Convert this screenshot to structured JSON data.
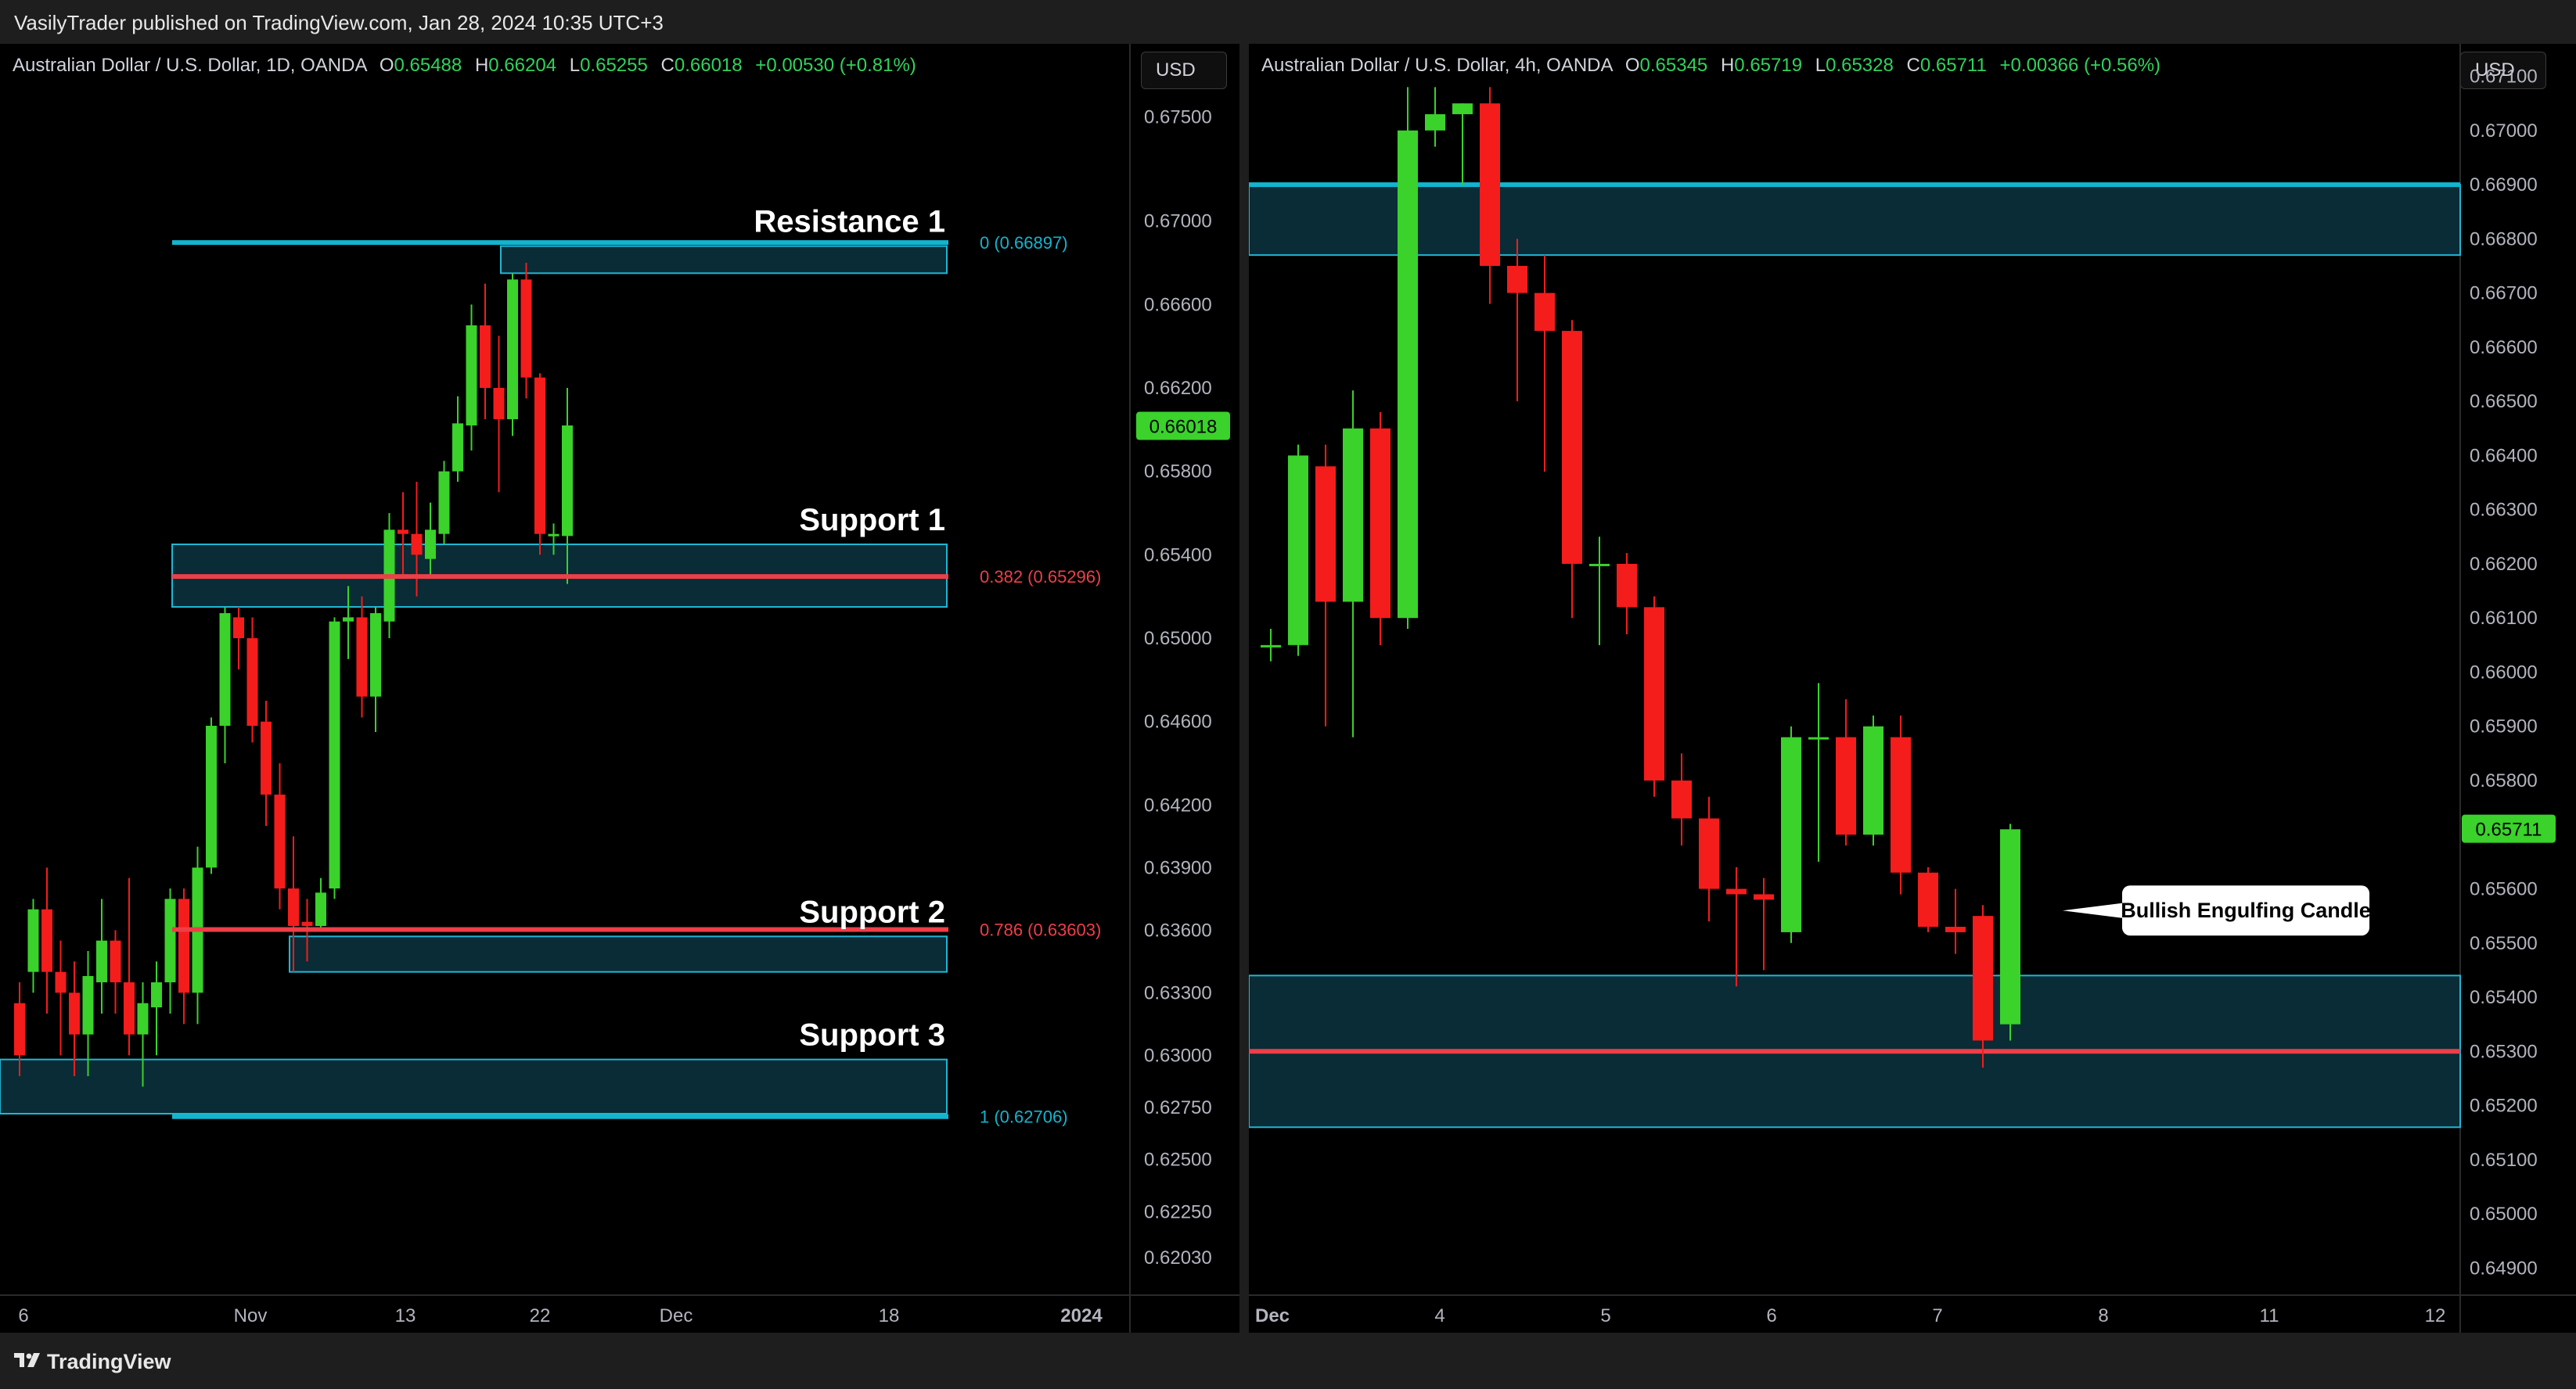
{
  "header": {
    "published": "VasilyTrader published on TradingView.com, Jan 28, 2024 10:35 UTC+3"
  },
  "footer": {
    "brand": "TradingView",
    "brand_icon": "tradingview-logo-icon"
  },
  "colors": {
    "up": "#3ad22b",
    "down": "#f51c1c",
    "zone_fill": "#0b3440",
    "zone_border": "#1fb6d4",
    "cyan_line": "#12b5d0",
    "red_line": "#ee3e48"
  },
  "chart_data": [
    {
      "type": "candlestick",
      "title": "Australian Dollar / U.S. Dollar, 1D, OANDA",
      "ohlc_legend": {
        "o_label": "O",
        "o": "0.65488",
        "h_label": "H",
        "h": "0.66204",
        "l_label": "L",
        "l": "0.65255",
        "c_label": "C",
        "c": "0.66018",
        "change": "+0.00530 (+0.81%)"
      },
      "currency_button": "USD",
      "ylim": [
        0.6185,
        0.6785
      ],
      "x_tick_labels": [
        "6",
        "Nov",
        "13",
        "22",
        "Dec",
        "18",
        "2024"
      ],
      "y_tick_labels": [
        "0.67500",
        "0.67000",
        "0.66600",
        "0.66200",
        "0.65800",
        "0.65400",
        "0.65000",
        "0.64600",
        "0.64200",
        "0.63900",
        "0.63600",
        "0.63300",
        "0.63000",
        "0.62750",
        "0.62500",
        "0.62250",
        "0.62030"
      ],
      "last_price": "0.66018",
      "candles": [
        [
          0.6325,
          0.63,
          0.6335,
          0.629
        ],
        [
          0.634,
          0.637,
          0.6375,
          0.633
        ],
        [
          0.637,
          0.634,
          0.639,
          0.632
        ],
        [
          0.634,
          0.633,
          0.6355,
          0.63
        ],
        [
          0.633,
          0.631,
          0.6345,
          0.629
        ],
        [
          0.631,
          0.6338,
          0.635,
          0.629
        ],
        [
          0.6335,
          0.6355,
          0.6375,
          0.632
        ],
        [
          0.6355,
          0.6335,
          0.636,
          0.632
        ],
        [
          0.6335,
          0.631,
          0.6385,
          0.63
        ],
        [
          0.631,
          0.6325,
          0.6335,
          0.6285
        ],
        [
          0.6323,
          0.6335,
          0.6345,
          0.63
        ],
        [
          0.6335,
          0.6375,
          0.638,
          0.632
        ],
        [
          0.6375,
          0.633,
          0.638,
          0.6315
        ],
        [
          0.633,
          0.639,
          0.64,
          0.6315
        ],
        [
          0.639,
          0.6458,
          0.6462,
          0.6387
        ],
        [
          0.6458,
          0.6512,
          0.6515,
          0.644
        ],
        [
          0.651,
          0.65,
          0.6515,
          0.6485
        ],
        [
          0.65,
          0.6458,
          0.651,
          0.645
        ],
        [
          0.646,
          0.6425,
          0.647,
          0.641
        ],
        [
          0.6425,
          0.638,
          0.644,
          0.637
        ],
        [
          0.638,
          0.6362,
          0.6405,
          0.634
        ],
        [
          0.6364,
          0.6362,
          0.6375,
          0.6345
        ],
        [
          0.6362,
          0.6378,
          0.6385,
          0.636
        ],
        [
          0.638,
          0.6508,
          0.651,
          0.6375
        ],
        [
          0.6508,
          0.651,
          0.6525,
          0.649
        ],
        [
          0.651,
          0.6472,
          0.652,
          0.6462
        ],
        [
          0.6472,
          0.6512,
          0.6515,
          0.6455
        ],
        [
          0.6508,
          0.6552,
          0.656,
          0.65
        ],
        [
          0.6552,
          0.655,
          0.657,
          0.653
        ],
        [
          0.655,
          0.654,
          0.6575,
          0.652
        ],
        [
          0.6538,
          0.6552,
          0.6565,
          0.653
        ],
        [
          0.655,
          0.658,
          0.6585,
          0.6545
        ],
        [
          0.658,
          0.6603,
          0.6616,
          0.6575
        ],
        [
          0.6602,
          0.665,
          0.666,
          0.659
        ],
        [
          0.665,
          0.662,
          0.667,
          0.6605
        ],
        [
          0.662,
          0.6605,
          0.6645,
          0.657
        ],
        [
          0.6605,
          0.6672,
          0.6675,
          0.6597
        ],
        [
          0.6672,
          0.6625,
          0.668,
          0.6615
        ],
        [
          0.6625,
          0.655,
          0.6627,
          0.654
        ],
        [
          0.6549,
          0.655,
          0.6555,
          0.654
        ],
        [
          0.6549,
          0.6602,
          0.662,
          0.6526
        ]
      ],
      "zones": [
        {
          "name": "Resistance 1",
          "from": 0.6675,
          "to": 0.6688
        },
        {
          "name": "Support 1",
          "from": 0.6515,
          "to": 0.6545
        },
        {
          "name": "Support 2",
          "from": 0.634,
          "to": 0.6357
        },
        {
          "name": "Support 3",
          "from": 0.6272,
          "to": 0.6298
        }
      ],
      "fib_levels": [
        {
          "label": "0 (0.66897)",
          "value": 0.66897,
          "color": "cyan"
        },
        {
          "label": "0.382 (0.65296)",
          "value": 0.65296,
          "color": "red"
        },
        {
          "label": "0.786 (0.63603)",
          "value": 0.63603,
          "color": "red"
        },
        {
          "label": "1 (0.62706)",
          "value": 0.62706,
          "color": "cyan"
        }
      ],
      "annotations": [
        "Resistance 1",
        "Support 1",
        "Support 2",
        "Support 3"
      ]
    },
    {
      "type": "candlestick",
      "title": "Australian Dollar / U.S. Dollar, 4h, OANDA",
      "ohlc_legend": {
        "o_label": "O",
        "o": "0.65345",
        "h_label": "H",
        "h": "0.65719",
        "l_label": "L",
        "l": "0.65328",
        "c_label": "C",
        "c": "0.65711",
        "change": "+0.00366 (+0.56%)"
      },
      "currency_button": "USD",
      "ylim": [
        0.6485,
        0.6716
      ],
      "x_tick_labels": [
        "Dec",
        "4",
        "5",
        "6",
        "7",
        "8",
        "11",
        "12"
      ],
      "y_tick_labels": [
        "0.67100",
        "0.67000",
        "0.66900",
        "0.66800",
        "0.66700",
        "0.66600",
        "0.66500",
        "0.66400",
        "0.66300",
        "0.66200",
        "0.66100",
        "0.66000",
        "0.65900",
        "0.65800",
        "0.65700",
        "0.65600",
        "0.65500",
        "0.65400",
        "0.65300",
        "0.65200",
        "0.65100",
        "0.65000",
        "0.64900"
      ],
      "last_price": "0.65711",
      "candles": [
        [
          0.6605,
          0.6605,
          0.6608,
          0.6602
        ],
        [
          0.6605,
          0.664,
          0.6642,
          0.6603
        ],
        [
          0.6638,
          0.6613,
          0.6642,
          0.659
        ],
        [
          0.6613,
          0.6645,
          0.6652,
          0.6588
        ],
        [
          0.6645,
          0.661,
          0.6648,
          0.6605
        ],
        [
          0.661,
          0.67,
          0.6708,
          0.6608
        ],
        [
          0.67,
          0.6703,
          0.6708,
          0.6697
        ],
        [
          0.6703,
          0.6705,
          0.6705,
          0.669
        ],
        [
          0.6705,
          0.6675,
          0.6708,
          0.6668
        ],
        [
          0.6675,
          0.667,
          0.668,
          0.665
        ],
        [
          0.667,
          0.6663,
          0.6677,
          0.6637
        ],
        [
          0.6663,
          0.662,
          0.6665,
          0.661
        ],
        [
          0.662,
          0.662,
          0.6625,
          0.6605
        ],
        [
          0.662,
          0.6612,
          0.6622,
          0.6607
        ],
        [
          0.6612,
          0.658,
          0.6614,
          0.6577
        ],
        [
          0.658,
          0.6573,
          0.6585,
          0.6568
        ],
        [
          0.6573,
          0.656,
          0.6577,
          0.6554
        ],
        [
          0.656,
          0.6559,
          0.6564,
          0.6542
        ],
        [
          0.6559,
          0.6558,
          0.6562,
          0.6545
        ],
        [
          0.6552,
          0.6588,
          0.659,
          0.655
        ],
        [
          0.6588,
          0.6588,
          0.6598,
          0.6565
        ],
        [
          0.6588,
          0.657,
          0.6595,
          0.6568
        ],
        [
          0.657,
          0.659,
          0.6592,
          0.6568
        ],
        [
          0.6588,
          0.6563,
          0.6592,
          0.6559
        ],
        [
          0.6563,
          0.6553,
          0.6564,
          0.6552
        ],
        [
          0.6553,
          0.6552,
          0.656,
          0.6548
        ],
        [
          0.6555,
          0.6532,
          0.6557,
          0.6527
        ],
        [
          0.6535,
          0.6571,
          0.6572,
          0.6532
        ]
      ],
      "zones": [
        {
          "from": 0.6677,
          "to": 0.669
        },
        {
          "from": 0.6516,
          "to": 0.6544
        }
      ],
      "lines": [
        {
          "value": 0.669,
          "color": "cyan"
        },
        {
          "value": 0.653,
          "color": "red"
        }
      ],
      "annotation": "Bullish Engulfing Candle"
    }
  ]
}
